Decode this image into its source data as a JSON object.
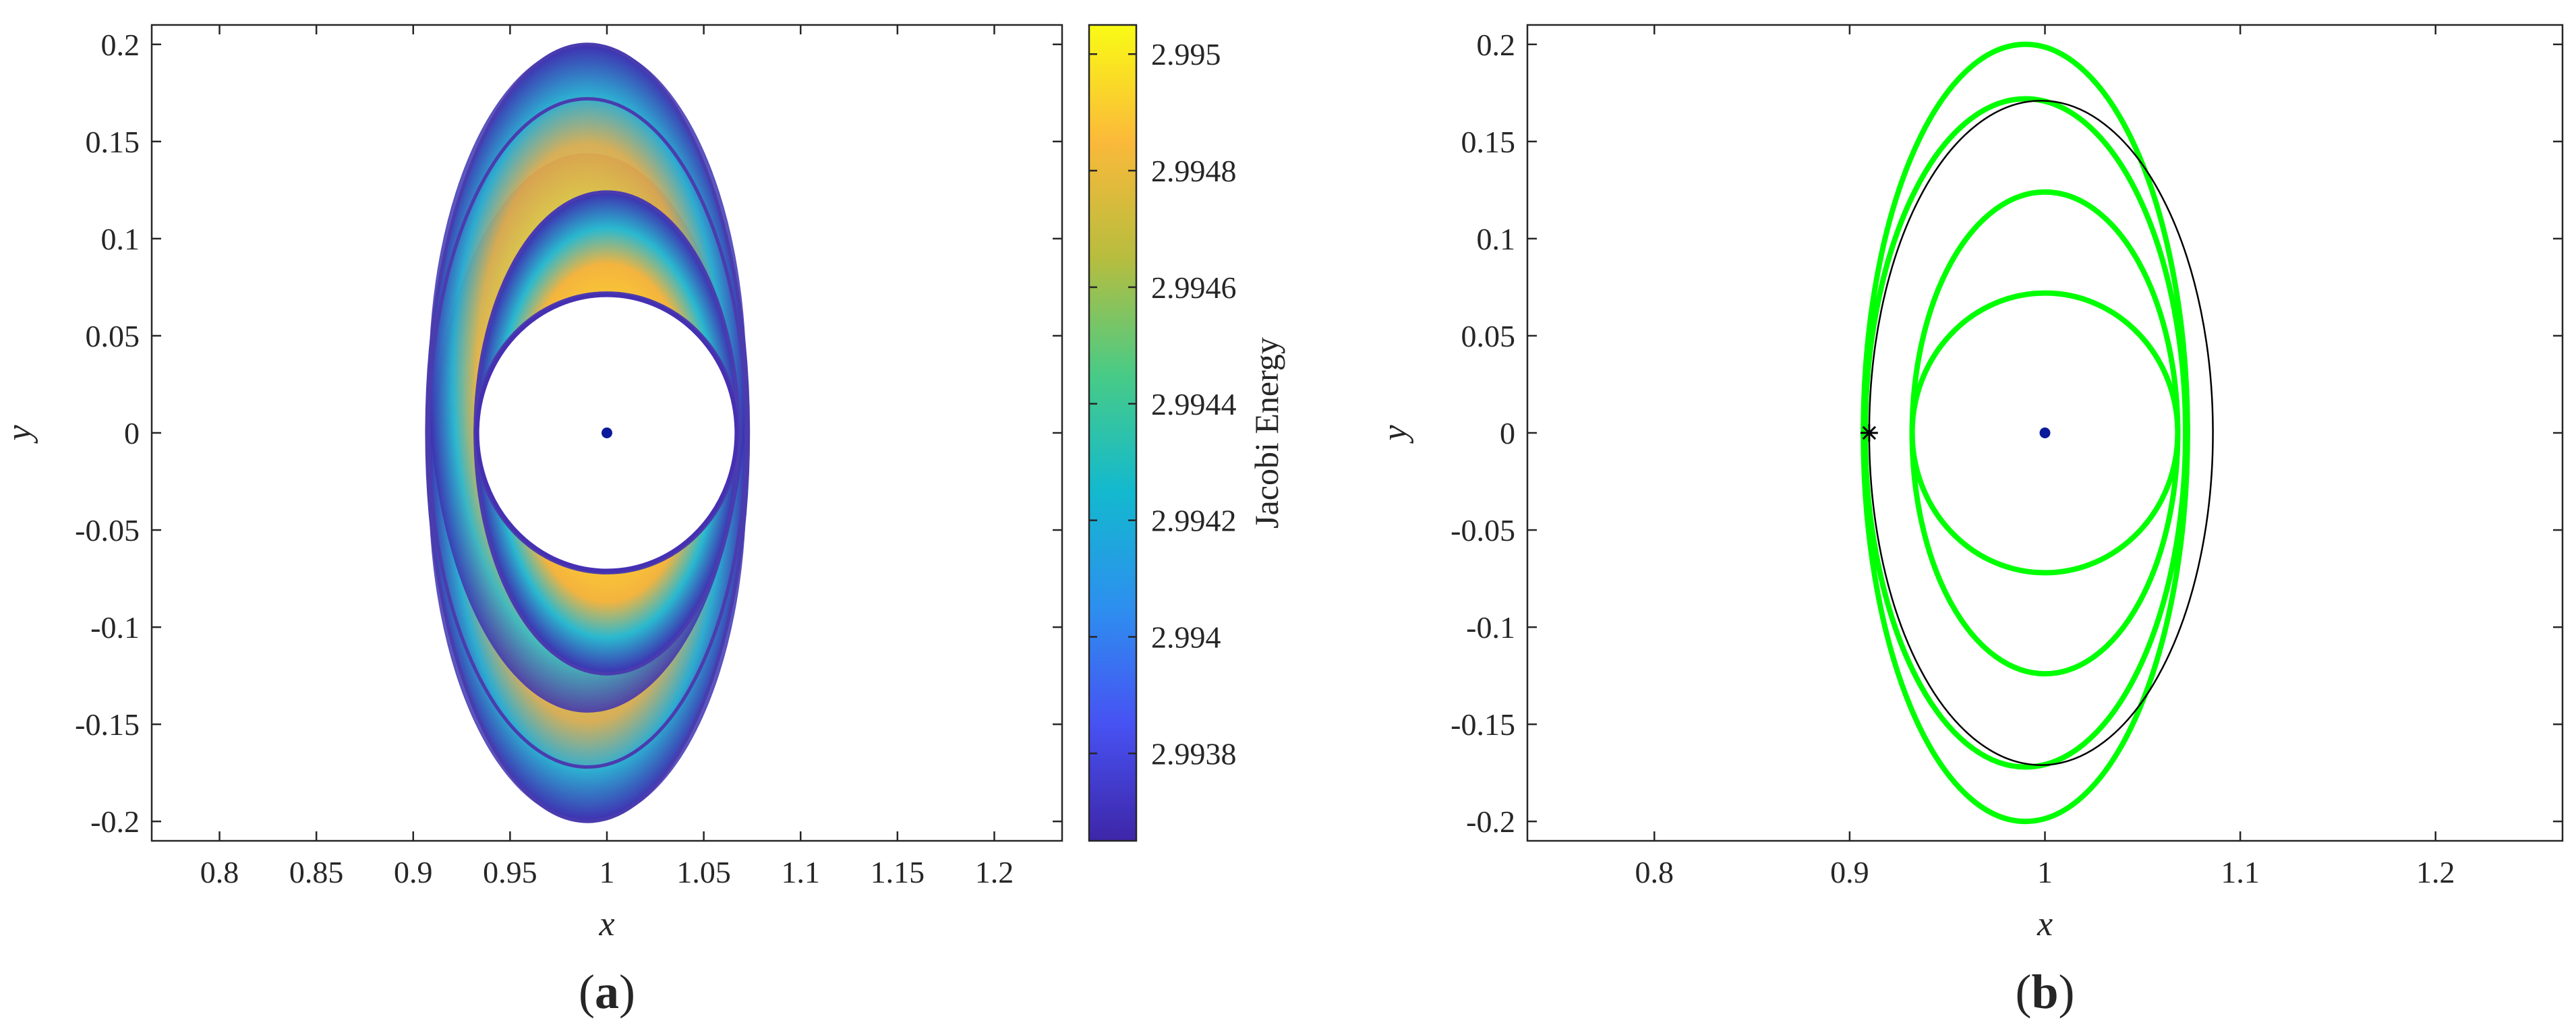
{
  "chart_data": [
    {
      "panel_label": "a",
      "type": "area",
      "xlabel": "x",
      "ylabel": "y",
      "xlim": [
        0.765,
        1.235
      ],
      "ylim": [
        -0.21,
        0.21
      ],
      "xticks": [
        0.8,
        0.85,
        0.9,
        0.95,
        1,
        1.05,
        1.1,
        1.15,
        1.2
      ],
      "yticks": [
        -0.2,
        -0.15,
        -0.1,
        -0.05,
        0,
        0.05,
        0.1,
        0.15,
        0.2
      ],
      "xtick_labels": [
        "0.8",
        "0.85",
        "0.9",
        "0.95",
        "1",
        "1.05",
        "1.1",
        "1.15",
        "1.2"
      ],
      "ytick_labels": [
        "-0.2",
        "-0.15",
        "-0.1",
        "-0.05",
        "0",
        "0.05",
        "0.1",
        "0.15",
        "0.2"
      ],
      "grid": false,
      "description_of_fill": "family of periodic orbits swept as a colored band, colored by Jacobi energy (low = dark blue at outer/inner edges, high = yellow near middle rings)",
      "orbit_curves": [
        {
          "center": [
            0.99,
            0.0
          ],
          "rx": 0.083,
          "ry": 0.2
        },
        {
          "center": [
            0.99,
            0.0
          ],
          "rx": 0.082,
          "ry": 0.172
        },
        {
          "center": [
            1.0,
            0.0
          ],
          "rx": 0.068,
          "ry": 0.124
        },
        {
          "center": [
            1.0,
            0.0
          ],
          "rx": 0.068,
          "ry": 0.072
        }
      ],
      "primary_point": {
        "x": 1.0,
        "y": 0.0
      },
      "colorbar": {
        "label": "Jacobi Energy",
        "range": [
          2.99365,
          2.99505
        ],
        "ticks": [
          2.9938,
          2.994,
          2.9942,
          2.9944,
          2.9946,
          2.9948,
          2.995
        ],
        "tick_labels": [
          "2.9938",
          "2.994",
          "2.9942",
          "2.9944",
          "2.9946",
          "2.9948",
          "2.995"
        ],
        "colormap": [
          "#3e26a8",
          "#4752f3",
          "#2d8fef",
          "#13b9ce",
          "#48cb86",
          "#b7bd3e",
          "#fbb93a",
          "#f9fb15"
        ]
      }
    },
    {
      "panel_label": "b",
      "type": "line",
      "xlabel": "x",
      "ylabel": "y",
      "xlim": [
        0.735,
        1.265
      ],
      "ylim": [
        -0.21,
        0.21
      ],
      "xticks": [
        0.8,
        0.9,
        1,
        1.1,
        1.2
      ],
      "yticks": [
        -0.2,
        -0.15,
        -0.1,
        -0.05,
        0,
        0.05,
        0.1,
        0.15,
        0.2
      ],
      "xtick_labels": [
        "0.8",
        "0.9",
        "1",
        "1.1",
        "1.2"
      ],
      "ytick_labels": [
        "-0.2",
        "-0.15",
        "-0.1",
        "-0.05",
        "0",
        "0.05",
        "0.1",
        "0.15",
        "0.2"
      ],
      "grid": false,
      "series": [
        {
          "color": "#00ff00",
          "center": [
            0.99,
            0.0
          ],
          "rx": 0.083,
          "ry": 0.2
        },
        {
          "color": "#00ff00",
          "center": [
            0.99,
            0.0
          ],
          "rx": 0.082,
          "ry": 0.172
        },
        {
          "color": "#00ff00",
          "center": [
            1.0,
            0.0
          ],
          "rx": 0.068,
          "ry": 0.124
        },
        {
          "color": "#00ff00",
          "center": [
            1.0,
            0.0
          ],
          "rx": 0.068,
          "ry": 0.072
        },
        {
          "color": "#000000",
          "center": [
            0.998,
            0.0
          ],
          "rx": 0.088,
          "ry": 0.171
        }
      ],
      "star_marker": {
        "x": 0.91,
        "y": 0.0
      },
      "primary_point": {
        "x": 1.0,
        "y": 0.0
      }
    }
  ],
  "colors": {
    "axis": "#262626",
    "primary_dot": "#0b1a9a",
    "orbit_green": "#00ff00"
  }
}
